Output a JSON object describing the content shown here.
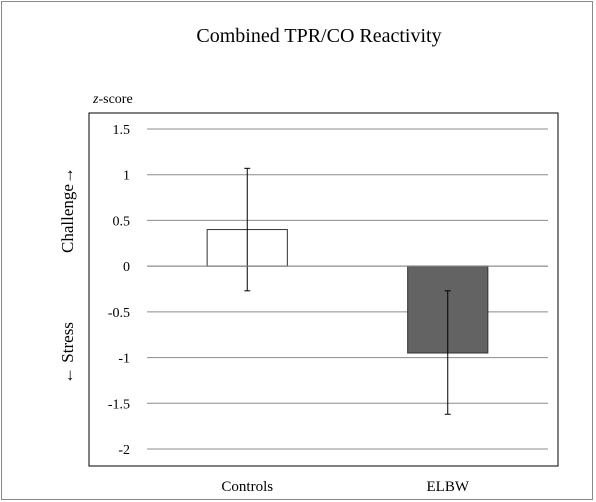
{
  "chart_data": {
    "type": "bar",
    "title": "Combined TPR/CO Reactivity",
    "ylabel_italic": "z",
    "ylabel_rest": "-score",
    "annotation_top": "Challenge→",
    "annotation_bottom": "← Stress",
    "categories": [
      "Controls",
      "ELBW"
    ],
    "values": [
      0.4,
      -0.95
    ],
    "error_upper": [
      1.07,
      -0.27
    ],
    "error_lower": [
      -0.27,
      -1.62
    ],
    "bar_colors": [
      "#ffffff",
      "#636363"
    ],
    "ylim": [
      -2,
      1.5
    ],
    "yticks": [
      1.5,
      1,
      0.5,
      0,
      -0.5,
      -1,
      -1.5,
      -2
    ],
    "yticklabels": [
      "1.5",
      "1",
      "0.5",
      "0",
      "-0.5",
      "-1",
      "-1.5",
      "-2"
    ],
    "grid": true
  }
}
